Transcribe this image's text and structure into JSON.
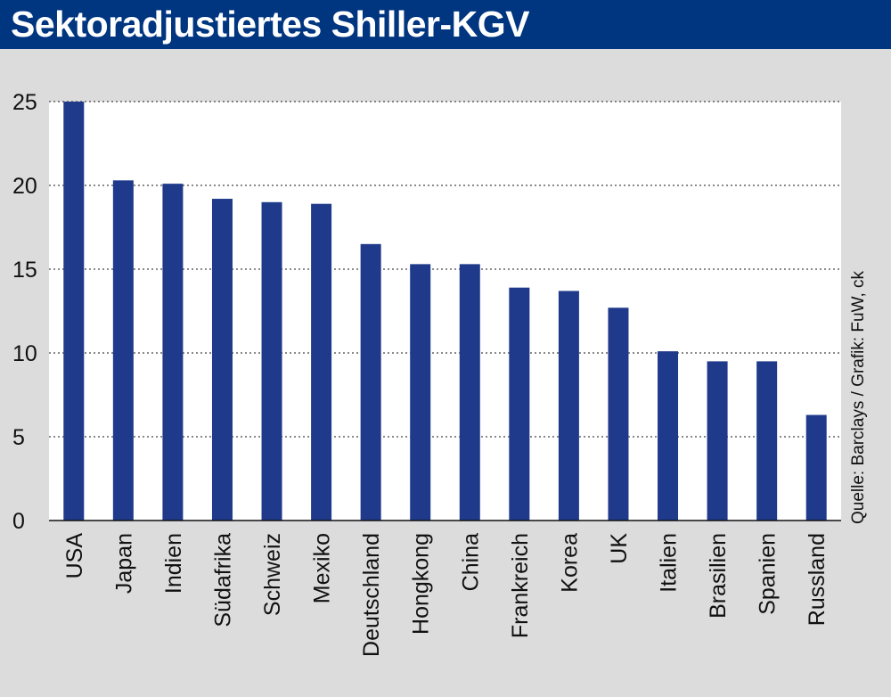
{
  "header": {
    "title": "Sektoradjustiertes Shiller-KGV"
  },
  "colors": {
    "bar": "#1f3a8a",
    "header_bg": "#003580",
    "plot_bg": "#ffffff"
  },
  "chart_data": {
    "type": "bar",
    "title": "Sektoradjustiertes Shiller-KGV",
    "xlabel": "",
    "ylabel": "",
    "ylim": [
      0,
      25
    ],
    "yticks": [
      0,
      5,
      10,
      15,
      20,
      25
    ],
    "grid": true,
    "categories": [
      "USA",
      "Japan",
      "Indien",
      "Südafrika",
      "Schweiz",
      "Mexiko",
      "Deutschland",
      "Hongkong",
      "China",
      "Frankreich",
      "Korea",
      "UK",
      "Italien",
      "Brasilien",
      "Spanien",
      "Russland"
    ],
    "values": [
      25.0,
      20.3,
      20.1,
      19.2,
      19.0,
      18.9,
      16.5,
      15.3,
      15.3,
      13.9,
      13.7,
      12.7,
      10.1,
      9.5,
      9.5,
      6.3
    ],
    "source": "Quelle: Barclays / Grafik: FuW, ck"
  }
}
